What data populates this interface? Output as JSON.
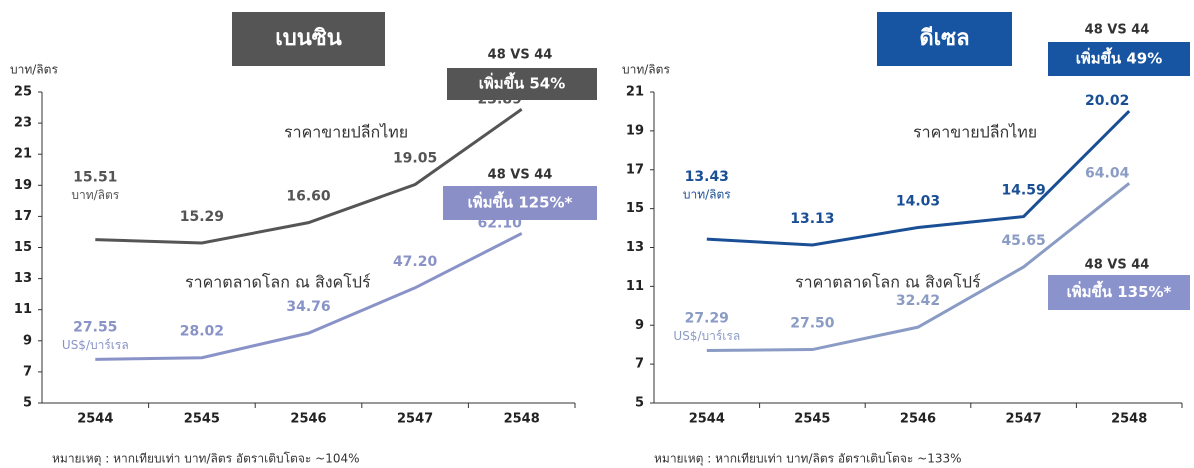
{
  "chart_data": [
    {
      "type": "line",
      "title": "เบนซิน",
      "title_color": "#555555",
      "y_label": "บาท/ลิตร",
      "categories": [
        "2544",
        "2545",
        "2546",
        "2547",
        "2548"
      ],
      "series": [
        {
          "name": "ราคาขายปลีกไทย",
          "color": "#555555",
          "unit_label": "บาท/ลิตร",
          "values": [
            15.51,
            15.29,
            16.6,
            19.05,
            23.89
          ],
          "value_labels": [
            "15.51",
            "15.29",
            "16.60",
            "19.05",
            "23.89"
          ]
        },
        {
          "name": "ราคาตลาดโลก ณ สิงคโปร์",
          "color": "#8a93c8",
          "unit_label": "US$/บาร์เรล",
          "axis": "y2",
          "values": [
            27.55,
            28.02,
            34.76,
            47.2,
            62.1
          ],
          "value_labels": [
            "27.55",
            "28.02",
            "34.76",
            "47.20",
            "62.10"
          ]
        }
      ],
      "ylim": [
        5,
        25
      ],
      "yticks": [
        5,
        7,
        9,
        11,
        13,
        15,
        17,
        19,
        21,
        23,
        25
      ],
      "y2lim": [
        15.6,
        100.9
      ],
      "annotations": [
        {
          "heading": "48 VS 44",
          "text": "เพิ่มขึ้น 54%",
          "color": "#555555"
        },
        {
          "heading": "48 VS 44",
          "text": "เพิ่มขึ้น 125%*",
          "color": "#8a8fc8"
        }
      ],
      "note": "หมายเหตุ : หากเทียบเท่า บาท/ลิตร อัตราเติบโตจะ ~104%"
    },
    {
      "type": "line",
      "title": "ดีเซล",
      "title_color": "#1754a2",
      "y_label": "บาท/ลิตร",
      "categories": [
        "2544",
        "2545",
        "2546",
        "2547",
        "2548"
      ],
      "series": [
        {
          "name": "ราคาขายปลีกไทย",
          "color": "#1a4f96",
          "unit_label": "บาท/ลิตร",
          "values": [
            13.43,
            13.13,
            14.03,
            14.59,
            20.02
          ],
          "value_labels": [
            "13.43",
            "13.13",
            "14.03",
            "14.59",
            "20.02"
          ]
        },
        {
          "name": "ราคาตลาดโลก ณ สิงคโปร์",
          "color": "#8a9bc4",
          "unit_label": "US$/บาร์เรล",
          "axis": "y2",
          "values": [
            27.29,
            27.5,
            32.42,
            45.65,
            64.04
          ],
          "value_labels": [
            "27.29",
            "27.50",
            "32.42",
            "45.65",
            "64.04"
          ]
        }
      ],
      "ylim": [
        5,
        21
      ],
      "yticks": [
        5,
        7,
        9,
        11,
        13,
        15,
        17,
        19,
        21
      ],
      "y2lim": [
        15.75,
        84.1
      ],
      "annotations": [
        {
          "heading": "48 VS 44",
          "text": "เพิ่มขึ้น 49%",
          "color": "#1754a2"
        },
        {
          "heading": "48 VS 44",
          "text": "เพิ่มขึ้น 135%*",
          "color": "#8b93cc"
        }
      ],
      "note": "หมายเหตุ : หากเทียบเท่า บาท/ลิตร อัตราเติบโตจะ ~133%"
    }
  ]
}
